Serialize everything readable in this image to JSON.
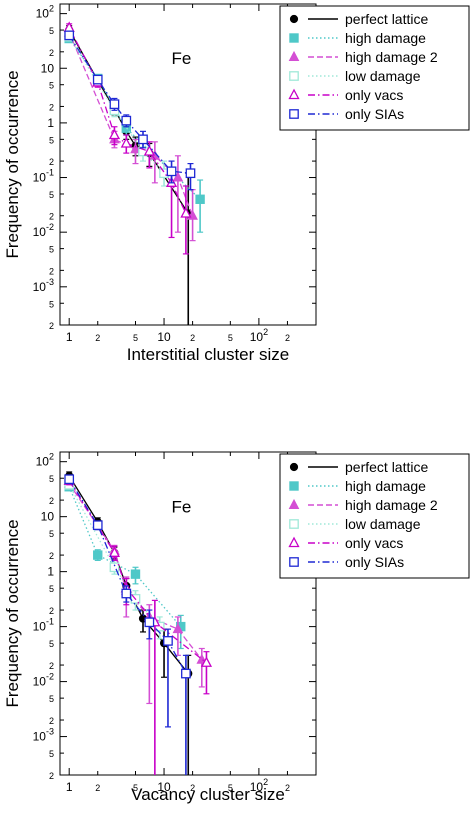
{
  "colors": {
    "perfect": "#000000",
    "high": "#4fc8c8",
    "high2": "#d44fd4",
    "low": "#9fe8d8",
    "vacs": "#c800c8",
    "sias": "#1e28d4"
  },
  "chart_data": [
    {
      "type": "scatter",
      "xscale": "log",
      "yscale": "log",
      "xlim": [
        0.8,
        400
      ],
      "ylim": [
        0.0002,
        150
      ],
      "annotation": "Fe",
      "xlabel": "Interstitial cluster size",
      "ylabel": "Frequency of occurrence",
      "x_ticks": [
        "1",
        "2",
        "5",
        "10",
        "2",
        "5",
        "10^2",
        "2"
      ],
      "y_ticks": [
        "10^2",
        "5",
        "2",
        "10",
        "5",
        "2",
        "1",
        "5",
        "2",
        "10^-1",
        "5",
        "2",
        "10^-2",
        "5",
        "2",
        "10^-3",
        "5",
        "2"
      ],
      "legend_position": "top-right",
      "series": [
        {
          "name": "perfect lattice",
          "marker": "circle-filled",
          "line": "solid",
          "color_key": "perfect",
          "x": [
            1,
            2,
            3,
            4,
            5,
            7,
            18
          ],
          "y": [
            50,
            6,
            1.8,
            0.7,
            0.38,
            0.28,
            0.022
          ],
          "err_low": [
            40,
            5,
            1.4,
            0.5,
            0.25,
            0.16,
            0.0002
          ],
          "err_high": [
            60,
            7.5,
            2.3,
            0.95,
            0.55,
            0.42,
            0.12
          ]
        },
        {
          "name": "high damage",
          "marker": "square-filled",
          "line": "dotted",
          "color_key": "high",
          "x": [
            1,
            2,
            4,
            24
          ],
          "y": [
            35,
            6.5,
            0.8,
            0.04
          ],
          "err_low": [
            30,
            5.5,
            0.6,
            0.01
          ],
          "err_high": [
            40,
            7.5,
            1.0,
            0.09
          ]
        },
        {
          "name": "high damage 2",
          "marker": "triangle-filled",
          "line": "dashed",
          "color_key": "high2",
          "x": [
            1,
            3,
            5,
            8,
            14,
            20
          ],
          "y": [
            45,
            0.5,
            0.33,
            0.25,
            0.1,
            0.02
          ],
          "err_low": [
            38,
            0.35,
            0.18,
            0.08,
            0.01,
            0.007
          ],
          "err_high": [
            52,
            0.7,
            0.5,
            0.45,
            0.25,
            0.06
          ]
        },
        {
          "name": "low damage",
          "marker": "square-open",
          "line": "dotted",
          "color_key": "low",
          "x": [
            1,
            3,
            6,
            10
          ],
          "y": [
            38,
            1.7,
            0.3,
            0.12
          ],
          "err_low": [
            32,
            1.3,
            0.2,
            0.07
          ],
          "err_high": [
            45,
            2.2,
            0.45,
            0.2
          ]
        },
        {
          "name": "only vacs",
          "marker": "triangle-open",
          "line": "dash-dot",
          "color_key": "vacs",
          "x": [
            1,
            2,
            3,
            4,
            7,
            12,
            17
          ],
          "y": [
            55,
            5.5,
            0.6,
            0.42,
            0.3,
            0.08,
            0.022
          ],
          "err_low": [
            45,
            4.5,
            0.4,
            0.28,
            0.15,
            0.008,
            0.004
          ],
          "err_high": [
            65,
            6.5,
            0.85,
            0.6,
            0.45,
            0.15,
            0.07
          ]
        },
        {
          "name": "only SIAs",
          "marker": "square-open",
          "line": "dash-dot",
          "color_key": "sias",
          "x": [
            1,
            2,
            3,
            4,
            6,
            12,
            19
          ],
          "y": [
            40,
            6.2,
            2.2,
            1.1,
            0.5,
            0.13,
            0.12
          ],
          "err_low": [
            34,
            5.3,
            1.7,
            0.85,
            0.35,
            0.08,
            0.06
          ],
          "err_high": [
            47,
            7.2,
            2.8,
            1.4,
            0.7,
            0.2,
            0.18
          ]
        }
      ]
    },
    {
      "type": "scatter",
      "xscale": "log",
      "yscale": "log",
      "xlim": [
        0.8,
        400
      ],
      "ylim": [
        0.0002,
        150
      ],
      "annotation": "Fe",
      "xlabel": "Vacancy cluster size",
      "ylabel": "Frequency of occurrence",
      "x_ticks": [
        "1",
        "2",
        "5",
        "10",
        "2",
        "5",
        "10^2",
        "2"
      ],
      "y_ticks": [
        "10^2",
        "5",
        "2",
        "10",
        "5",
        "2",
        "1",
        "5",
        "2",
        "10^-1",
        "5",
        "2",
        "10^-2",
        "5",
        "2",
        "10^-3",
        "5",
        "2"
      ],
      "legend_position": "top-right",
      "series": [
        {
          "name": "perfect lattice",
          "marker": "circle-filled",
          "line": "solid",
          "color_key": "perfect",
          "x": [
            1,
            2,
            3,
            4,
            6,
            10,
            18
          ],
          "y": [
            55,
            8,
            2.2,
            0.55,
            0.14,
            0.05,
            0.014
          ],
          "err_low": [
            45,
            6.5,
            1.7,
            0.4,
            0.08,
            0.012,
            0.0002
          ],
          "err_high": [
            65,
            9.5,
            2.8,
            0.75,
            0.2,
            0.09,
            0.03
          ]
        },
        {
          "name": "high damage",
          "marker": "square-filled",
          "line": "dotted",
          "color_key": "high",
          "x": [
            1,
            2,
            5,
            15
          ],
          "y": [
            35,
            2,
            0.9,
            0.1
          ],
          "err_low": [
            30,
            1.6,
            0.6,
            0.04
          ],
          "err_high": [
            40,
            2.5,
            1.2,
            0.16
          ]
        },
        {
          "name": "high damage 2",
          "marker": "triangle-filled",
          "line": "dashed",
          "color_key": "high2",
          "x": [
            1,
            3,
            4,
            7,
            14,
            25
          ],
          "y": [
            40,
            2.4,
            0.45,
            0.15,
            0.09,
            0.025
          ],
          "err_low": [
            34,
            1.8,
            0.15,
            0.004,
            0.03,
            0.008
          ],
          "err_high": [
            46,
            3.0,
            0.8,
            0.25,
            0.15,
            0.04
          ]
        },
        {
          "name": "low damage",
          "marker": "square-open",
          "line": "dotted",
          "color_key": "low",
          "x": [
            1,
            3,
            5,
            9
          ],
          "y": [
            38,
            1.2,
            0.32,
            0.1
          ],
          "err_low": [
            32,
            0.9,
            0.2,
            0.06
          ],
          "err_high": [
            44,
            1.6,
            0.45,
            0.15
          ]
        },
        {
          "name": "only vacs",
          "marker": "triangle-open",
          "line": "dash-dot",
          "color_key": "vacs",
          "x": [
            1,
            3,
            4,
            8,
            28
          ],
          "y": [
            45,
            2.2,
            0.5,
            0.12,
            0.022
          ],
          "err_low": [
            38,
            1.6,
            0.25,
            0.0002,
            0.006
          ],
          "err_high": [
            52,
            2.9,
            0.75,
            0.3,
            0.035
          ]
        },
        {
          "name": "only SIAs",
          "marker": "square-open",
          "line": "dash-dot",
          "color_key": "sias",
          "x": [
            1,
            2,
            4,
            7,
            11,
            17
          ],
          "y": [
            48,
            7,
            0.4,
            0.12,
            0.055,
            0.014
          ],
          "err_low": [
            40,
            5.8,
            0.28,
            0.06,
            0.0015,
            0.0002
          ],
          "err_high": [
            56,
            8.2,
            0.55,
            0.2,
            0.09,
            0.03
          ]
        }
      ]
    }
  ]
}
